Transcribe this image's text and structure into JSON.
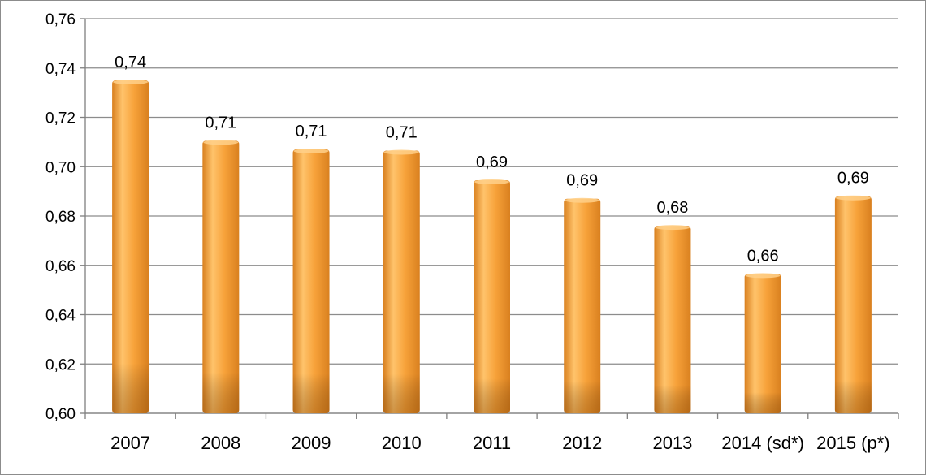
{
  "chart_data": {
    "type": "bar",
    "title": "",
    "xlabel": "",
    "ylabel": "",
    "categories": [
      "2007",
      "2008",
      "2009",
      "2010",
      "2011",
      "2012",
      "2013",
      "2014 (sd*)",
      "2015 (p*)"
    ],
    "values": [
      0.735,
      0.7105,
      0.707,
      0.7065,
      0.6945,
      0.687,
      0.676,
      0.6565,
      0.688
    ],
    "data_labels": [
      "0,74",
      "0,71",
      "0,71",
      "0,71",
      "0,69",
      "0,69",
      "0,68",
      "0,66",
      "0,69"
    ],
    "ylim": [
      0.6,
      0.76
    ],
    "yticks": [
      0.6,
      0.62,
      0.64,
      0.66,
      0.68,
      0.7,
      0.72,
      0.74,
      0.76
    ],
    "ytick_labels": [
      "0,60",
      "0,62",
      "0,64",
      "0,66",
      "0,68",
      "0,70",
      "0,72",
      "0,74",
      "0,76"
    ],
    "grid": true,
    "legend": "none",
    "colors": {
      "bar_light": "#ffc36b",
      "bar_mid": "#f7a23a",
      "bar_dark": "#d9801f",
      "grid": "#8c8c8c",
      "axis": "#808080"
    }
  }
}
